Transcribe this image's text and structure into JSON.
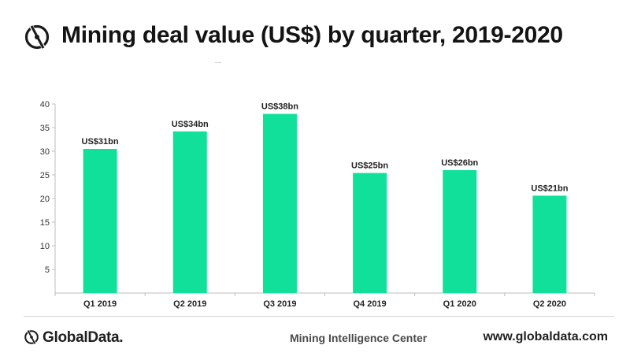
{
  "header": {
    "title": "Mining deal value (US$) by quarter, 2019-2020",
    "logo_icon": "globaldata-logo-icon"
  },
  "colors": {
    "bar": "#11e09a",
    "axis": "#bdbdbd",
    "text": "#222222"
  },
  "chart_data": {
    "type": "bar",
    "title": "Mining deal value (US$) by quarter, 2019-2020",
    "xlabel": "",
    "ylabel": "",
    "categories": [
      "Q1 2019",
      "Q2 2019",
      "Q3 2019",
      "Q4 2019",
      "Q1 2020",
      "Q2 2020"
    ],
    "values": [
      30.5,
      34.2,
      37.9,
      25.4,
      26.0,
      20.6
    ],
    "data_labels": [
      "US$31bn",
      "US$34bn",
      "US$38bn",
      "US$25bn",
      "US$26bn",
      "US$21bn"
    ],
    "ylim": [
      0,
      40
    ],
    "yticks": [
      5,
      10,
      15,
      20,
      25,
      30,
      35,
      40
    ],
    "grid": false,
    "legend": "none"
  },
  "footer": {
    "brand_name": "GlobalData.",
    "center_name": "Mining Intelligence Center",
    "url": "www.globaldata.com"
  }
}
